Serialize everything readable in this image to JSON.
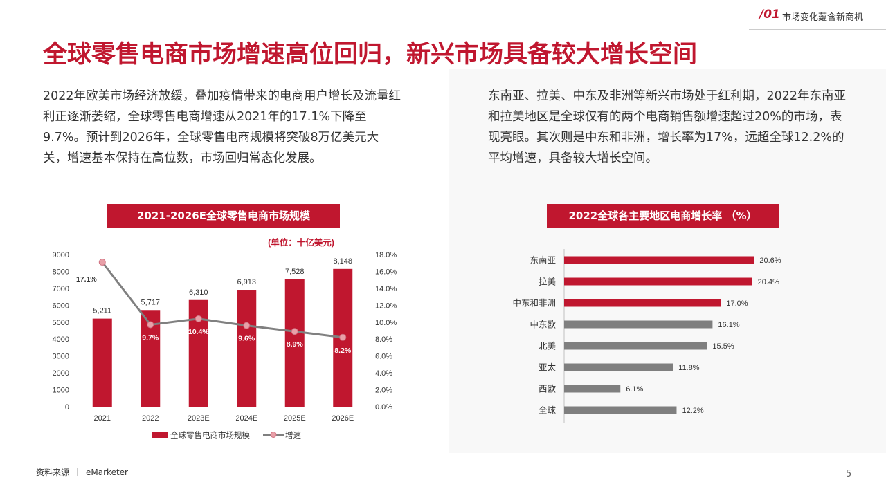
{
  "header": {
    "section_number": "/01",
    "section_title": "市场变化蕴含新商机"
  },
  "title": "全球零售电商市场增速高位回归，新兴市场具备较大增长空间",
  "paragraphs": {
    "left": "2022年欧美市场经济放缓，叠加疫情带来的电商用户增长及流量红利正逐渐萎缩，全球零售电商增速从2021年的17.1%下降至9.7%。预计到2026年，全球零售电商规模将突破8万亿美元大关，增速基本保持在高位数，市场回归常态化发展。",
    "right": "东南亚、拉美、中东及非洲等新兴市场处于红利期，2022年东南亚和拉美地区是全球仅有的两个电商销售额增速超过20%的市场，表现亮眼。其次则是中东和非洲，增长率为17%，远超全球12.2%的平均增速，具备较大增长空间。"
  },
  "footer": {
    "source_label": "资料来源",
    "source_separator": "丨",
    "source": "eMarketer",
    "page": "5"
  },
  "colors": {
    "accent": "#c0172f",
    "gray_bar": "#7f7f7f",
    "line": "#808080"
  },
  "chart_data": [
    {
      "type": "bar",
      "title": "2021-2026E全球零售电商市场规模",
      "unit_label": "(单位：十亿美元)",
      "categories": [
        "2021",
        "2022",
        "2023E",
        "2024E",
        "2025E",
        "2026E"
      ],
      "y_ticks": [
        "9000",
        "8000",
        "7000",
        "6000",
        "5000",
        "4000",
        "3000",
        "2000",
        "1000",
        "0"
      ],
      "y2_ticks": [
        "18.0%",
        "16.0%",
        "14.0%",
        "12.0%",
        "10.0%",
        "8.0%",
        "6.0%",
        "4.0%",
        "2.0%",
        "0.0%"
      ],
      "ylim": [
        0,
        9000
      ],
      "y2lim": [
        0,
        18
      ],
      "series": [
        {
          "name": "全球零售电商市场规模",
          "kind": "bar",
          "values": [
            5211,
            5717,
            6310,
            6913,
            7528,
            8148
          ],
          "labels": [
            "5,211",
            "5,717",
            "6,310",
            "6,913",
            "7,528",
            "8,148"
          ],
          "color": "#c0172f"
        },
        {
          "name": "增速",
          "kind": "line",
          "axis": "right",
          "values": [
            17.1,
            9.7,
            10.4,
            9.6,
            8.9,
            8.2
          ],
          "labels": [
            "17.1%",
            "9.7%",
            "10.4%",
            "9.6%",
            "8.9%",
            "8.2%"
          ],
          "color": "#808080"
        }
      ],
      "legend_position": "bottom"
    },
    {
      "type": "bar",
      "orientation": "horizontal",
      "title": "2022全球各主要地区电商增长率 （%）",
      "categories": [
        "东南亚",
        "拉美",
        "中东和非洲",
        "中东欧",
        "北美",
        "亚太",
        "西欧",
        "全球"
      ],
      "values": [
        20.6,
        20.4,
        17.0,
        16.1,
        15.5,
        11.8,
        6.1,
        12.2
      ],
      "labels": [
        "20.6%",
        "20.4%",
        "17.0%",
        "16.1%",
        "15.5%",
        "11.8%",
        "6.1%",
        "12.2%"
      ],
      "bar_colors": [
        "#c0172f",
        "#c0172f",
        "#c0172f",
        "#7f7f7f",
        "#7f7f7f",
        "#7f7f7f",
        "#7f7f7f",
        "#7f7f7f"
      ],
      "xlim": [
        0,
        21.4
      ]
    }
  ]
}
